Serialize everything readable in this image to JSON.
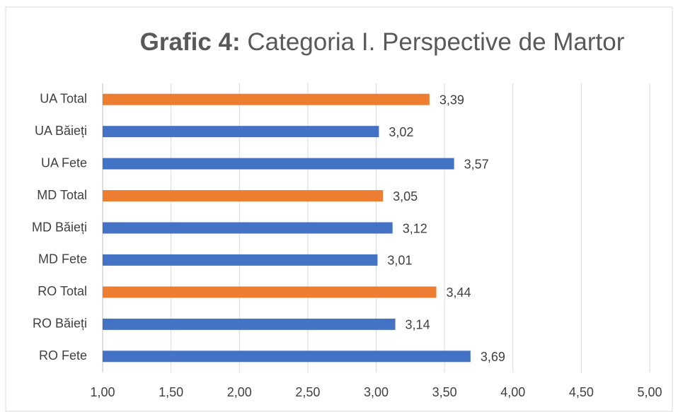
{
  "chart_data": {
    "type": "bar",
    "orientation": "horizontal",
    "title_prefix": "Grafic 4:",
    "title": "Categoria I. Perspective de Martor",
    "categories": [
      "UA Total",
      "UA Băieți",
      "UA Fete",
      "MD Total",
      "MD Băieți",
      "MD Fete",
      "RO Total",
      "RO Băieți",
      "RO Fete"
    ],
    "values": [
      3.39,
      3.02,
      3.57,
      3.05,
      3.12,
      3.01,
      3.44,
      3.14,
      3.69
    ],
    "value_labels": [
      "3,39",
      "3,02",
      "3,57",
      "3,05",
      "3,12",
      "3,01",
      "3,44",
      "3,14",
      "3,69"
    ],
    "colors": [
      "#ed7d31",
      "#4472c4",
      "#4472c4",
      "#ed7d31",
      "#4472c4",
      "#4472c4",
      "#ed7d31",
      "#4472c4",
      "#4472c4"
    ],
    "xlim": [
      1,
      5
    ],
    "xticks": [
      {
        "value": 1,
        "label": "1,00"
      },
      {
        "value": 1.5,
        "label": "1,50"
      },
      {
        "value": 2,
        "label": "2,00"
      },
      {
        "value": 2.5,
        "label": "2,50"
      },
      {
        "value": 3,
        "label": "3,00"
      },
      {
        "value": 3.5,
        "label": "3,50"
      },
      {
        "value": 4,
        "label": "4,00"
      },
      {
        "value": 4.5,
        "label": "4,50"
      },
      {
        "value": 5,
        "label": "5,00"
      }
    ],
    "grid": true
  }
}
